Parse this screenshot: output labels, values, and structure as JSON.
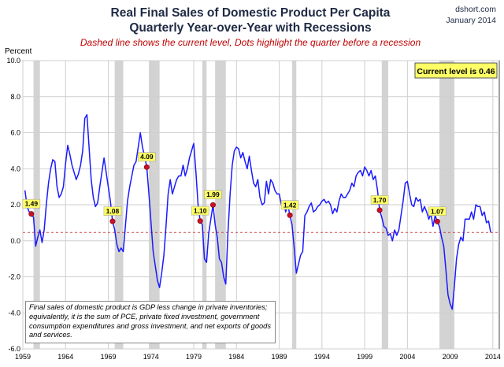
{
  "header": {
    "title_line1": "Real Final Sales of Domestic Product Per Capita",
    "title_line2": "Quarterly Year-over-Year with Recessions",
    "subtitle": "Dashed line shows the current level, Dots highlight the quarter before a recession",
    "source": "dshort.com",
    "date": "January 2014"
  },
  "current_level_label": "Current level is 0.46",
  "footnote": "Final sales of domestic product is GDP less change in private inventories; equivalently, it is the sum of PCE, private fixed investment, government consumption expenditures and gross investment, and net exports of goods and services.",
  "colors": {
    "line": "#1a1aff",
    "dots": "#c8102e",
    "dashed": "#d04040",
    "recession": "#d3d3d3",
    "label_box": "#ffff66"
  },
  "chart_data": {
    "type": "line",
    "title": "Real Final Sales of Domestic Product Per Capita",
    "subtitle": "Quarterly Year-over-Year with Recessions",
    "ylabel": "Percent",
    "ylim": [
      -6.0,
      10.0
    ],
    "yticks": [
      "10.0",
      "8.0",
      "6.0",
      "4.0",
      "2.0",
      "0.0",
      "-2.0",
      "-4.0",
      "-6.0"
    ],
    "xlim": [
      1959.0,
      2014.75
    ],
    "xticks": [
      "1959",
      "1964",
      "1969",
      "1974",
      "1979",
      "1984",
      "1989",
      "1994",
      "1999",
      "2004",
      "2009",
      "2014"
    ],
    "grid": true,
    "current_level": 0.46,
    "recessions": [
      [
        1960.25,
        1961.0
      ],
      [
        1969.75,
        1970.75
      ],
      [
        1973.75,
        1975.0
      ],
      [
        1980.0,
        1980.5
      ],
      [
        1981.5,
        1982.75
      ],
      [
        1990.5,
        1991.0
      ],
      [
        2001.0,
        2001.75
      ],
      [
        2007.75,
        2009.5
      ]
    ],
    "pre_recession_points": [
      {
        "x": 1960.0,
        "y": 1.49,
        "label": "1.49"
      },
      {
        "x": 1969.5,
        "y": 1.08,
        "label": "1.08"
      },
      {
        "x": 1973.5,
        "y": 4.09,
        "label": "4.09"
      },
      {
        "x": 1979.75,
        "y": 1.1,
        "label": "1.10"
      },
      {
        "x": 1981.25,
        "y": 1.99,
        "label": "1.99"
      },
      {
        "x": 1990.25,
        "y": 1.42,
        "label": "1.42"
      },
      {
        "x": 2000.75,
        "y": 1.7,
        "label": "1.70"
      },
      {
        "x": 2007.5,
        "y": 1.07,
        "label": "1.07"
      }
    ],
    "series": [
      {
        "points": [
          [
            1959.25,
            2.8
          ],
          [
            1959.5,
            1.9
          ],
          [
            1959.75,
            1.6
          ],
          [
            1960.0,
            1.49
          ],
          [
            1960.25,
            1.3
          ],
          [
            1960.5,
            -0.3
          ],
          [
            1960.75,
            0.2
          ],
          [
            1961.0,
            0.6
          ],
          [
            1961.25,
            -0.1
          ],
          [
            1961.5,
            0.6
          ],
          [
            1961.75,
            2.0
          ],
          [
            1962.0,
            3.2
          ],
          [
            1962.25,
            4.0
          ],
          [
            1962.5,
            4.5
          ],
          [
            1962.75,
            4.4
          ],
          [
            1963.0,
            3.0
          ],
          [
            1963.25,
            2.4
          ],
          [
            1963.5,
            2.6
          ],
          [
            1963.75,
            3.0
          ],
          [
            1964.0,
            4.3
          ],
          [
            1964.25,
            5.3
          ],
          [
            1964.5,
            4.8
          ],
          [
            1964.75,
            4.2
          ],
          [
            1965.0,
            3.8
          ],
          [
            1965.25,
            3.4
          ],
          [
            1965.5,
            3.7
          ],
          [
            1965.75,
            4.2
          ],
          [
            1966.0,
            5.0
          ],
          [
            1966.25,
            6.8
          ],
          [
            1966.5,
            7.0
          ],
          [
            1966.75,
            5.2
          ],
          [
            1967.0,
            3.4
          ],
          [
            1967.25,
            2.4
          ],
          [
            1967.5,
            1.9
          ],
          [
            1967.75,
            2.1
          ],
          [
            1968.0,
            3.0
          ],
          [
            1968.25,
            3.8
          ],
          [
            1968.5,
            4.6
          ],
          [
            1968.75,
            3.8
          ],
          [
            1969.0,
            3.0
          ],
          [
            1969.25,
            2.2
          ],
          [
            1969.5,
            1.08
          ],
          [
            1969.75,
            0.6
          ],
          [
            1970.0,
            -0.2
          ],
          [
            1970.25,
            -0.6
          ],
          [
            1970.5,
            -0.4
          ],
          [
            1970.75,
            -0.6
          ],
          [
            1971.0,
            0.8
          ],
          [
            1971.25,
            2.2
          ],
          [
            1971.5,
            3.0
          ],
          [
            1971.75,
            3.6
          ],
          [
            1972.0,
            4.2
          ],
          [
            1972.25,
            4.4
          ],
          [
            1972.5,
            5.2
          ],
          [
            1972.75,
            6.0
          ],
          [
            1973.0,
            5.2
          ],
          [
            1973.25,
            4.7
          ],
          [
            1973.5,
            4.09
          ],
          [
            1973.75,
            2.6
          ],
          [
            1974.0,
            1.0
          ],
          [
            1974.25,
            -0.6
          ],
          [
            1974.5,
            -1.4
          ],
          [
            1974.75,
            -2.2
          ],
          [
            1975.0,
            -2.6
          ],
          [
            1975.25,
            -1.8
          ],
          [
            1975.5,
            -0.8
          ],
          [
            1975.75,
            0.8
          ],
          [
            1976.0,
            2.6
          ],
          [
            1976.25,
            3.4
          ],
          [
            1976.5,
            2.6
          ],
          [
            1976.75,
            3.0
          ],
          [
            1977.0,
            3.4
          ],
          [
            1977.25,
            3.6
          ],
          [
            1977.5,
            3.6
          ],
          [
            1977.75,
            4.2
          ],
          [
            1978.0,
            3.6
          ],
          [
            1978.25,
            4.0
          ],
          [
            1978.5,
            4.6
          ],
          [
            1978.75,
            5.0
          ],
          [
            1979.0,
            5.4
          ],
          [
            1979.25,
            3.8
          ],
          [
            1979.5,
            2.0
          ],
          [
            1979.75,
            1.1
          ],
          [
            1980.0,
            0.9
          ],
          [
            1980.25,
            -1.0
          ],
          [
            1980.5,
            -1.2
          ],
          [
            1980.75,
            0.4
          ],
          [
            1981.0,
            1.2
          ],
          [
            1981.25,
            1.99
          ],
          [
            1981.5,
            0.9
          ],
          [
            1981.75,
            0.2
          ],
          [
            1982.0,
            -1.0
          ],
          [
            1982.25,
            -1.2
          ],
          [
            1982.5,
            -2.0
          ],
          [
            1982.75,
            -2.4
          ],
          [
            1983.0,
            0.4
          ],
          [
            1983.25,
            2.6
          ],
          [
            1983.5,
            4.2
          ],
          [
            1983.75,
            5.0
          ],
          [
            1984.0,
            5.2
          ],
          [
            1984.25,
            5.1
          ],
          [
            1984.5,
            4.6
          ],
          [
            1984.75,
            4.9
          ],
          [
            1985.0,
            4.4
          ],
          [
            1985.25,
            4.0
          ],
          [
            1985.5,
            4.7
          ],
          [
            1985.75,
            3.9
          ],
          [
            1986.0,
            3.2
          ],
          [
            1986.25,
            3.0
          ],
          [
            1986.5,
            3.4
          ],
          [
            1986.75,
            2.4
          ],
          [
            1987.0,
            2.0
          ],
          [
            1987.25,
            2.1
          ],
          [
            1987.5,
            3.3
          ],
          [
            1987.75,
            2.6
          ],
          [
            1988.0,
            3.4
          ],
          [
            1988.25,
            3.2
          ],
          [
            1988.5,
            2.8
          ],
          [
            1988.75,
            2.6
          ],
          [
            1989.0,
            2.6
          ],
          [
            1989.25,
            2.0
          ],
          [
            1989.5,
            2.2
          ],
          [
            1989.75,
            1.6
          ],
          [
            1990.0,
            2.0
          ],
          [
            1990.25,
            1.42
          ],
          [
            1990.5,
            0.9
          ],
          [
            1990.75,
            -0.4
          ],
          [
            1991.0,
            -1.8
          ],
          [
            1991.25,
            -1.3
          ],
          [
            1991.5,
            -0.8
          ],
          [
            1991.75,
            -0.6
          ],
          [
            1992.0,
            1.4
          ],
          [
            1992.25,
            1.6
          ],
          [
            1992.5,
            1.9
          ],
          [
            1992.75,
            2.1
          ],
          [
            1993.0,
            1.6
          ],
          [
            1993.25,
            1.7
          ],
          [
            1993.5,
            1.9
          ],
          [
            1993.75,
            2.0
          ],
          [
            1994.0,
            2.2
          ],
          [
            1994.25,
            2.3
          ],
          [
            1994.5,
            2.1
          ],
          [
            1994.75,
            2.2
          ],
          [
            1995.0,
            2.0
          ],
          [
            1995.25,
            1.5
          ],
          [
            1995.5,
            1.8
          ],
          [
            1995.75,
            1.6
          ],
          [
            1996.0,
            2.2
          ],
          [
            1996.25,
            2.6
          ],
          [
            1996.5,
            2.4
          ],
          [
            1996.75,
            2.4
          ],
          [
            1997.0,
            2.6
          ],
          [
            1997.25,
            2.8
          ],
          [
            1997.5,
            3.2
          ],
          [
            1997.75,
            3.0
          ],
          [
            1998.0,
            3.6
          ],
          [
            1998.25,
            3.8
          ],
          [
            1998.5,
            3.9
          ],
          [
            1998.75,
            3.6
          ],
          [
            1999.0,
            4.1
          ],
          [
            1999.25,
            3.9
          ],
          [
            1999.5,
            3.6
          ],
          [
            1999.75,
            3.9
          ],
          [
            2000.0,
            3.4
          ],
          [
            2000.25,
            3.6
          ],
          [
            2000.5,
            2.8
          ],
          [
            2000.75,
            1.7
          ],
          [
            2001.0,
            1.3
          ],
          [
            2001.25,
            0.8
          ],
          [
            2001.5,
            0.7
          ],
          [
            2001.75,
            0.3
          ],
          [
            2002.0,
            0.4
          ],
          [
            2002.25,
            0.0
          ],
          [
            2002.5,
            0.6
          ],
          [
            2002.75,
            0.3
          ],
          [
            2003.0,
            0.6
          ],
          [
            2003.25,
            1.4
          ],
          [
            2003.5,
            2.2
          ],
          [
            2003.75,
            3.2
          ],
          [
            2004.0,
            3.3
          ],
          [
            2004.25,
            2.6
          ],
          [
            2004.5,
            2.0
          ],
          [
            2004.75,
            1.9
          ],
          [
            2005.0,
            2.4
          ],
          [
            2005.25,
            2.2
          ],
          [
            2005.5,
            2.3
          ],
          [
            2005.75,
            1.6
          ],
          [
            2006.0,
            1.9
          ],
          [
            2006.25,
            1.6
          ],
          [
            2006.5,
            1.2
          ],
          [
            2006.75,
            1.5
          ],
          [
            2007.0,
            0.8
          ],
          [
            2007.25,
            1.4
          ],
          [
            2007.5,
            1.07
          ],
          [
            2007.75,
            0.8
          ],
          [
            2008.0,
            0.2
          ],
          [
            2008.25,
            -0.3
          ],
          [
            2008.5,
            -1.6
          ],
          [
            2008.75,
            -3.0
          ],
          [
            2009.0,
            -3.5
          ],
          [
            2009.25,
            -3.8
          ],
          [
            2009.5,
            -2.5
          ],
          [
            2009.75,
            -1.0
          ],
          [
            2010.0,
            -0.2
          ],
          [
            2010.25,
            0.2
          ],
          [
            2010.5,
            0.0
          ],
          [
            2010.75,
            1.2
          ],
          [
            2011.0,
            1.2
          ],
          [
            2011.25,
            1.2
          ],
          [
            2011.5,
            1.6
          ],
          [
            2011.75,
            1.2
          ],
          [
            2012.0,
            2.0
          ],
          [
            2012.25,
            1.9
          ],
          [
            2012.5,
            1.9
          ],
          [
            2012.75,
            1.4
          ],
          [
            2013.0,
            1.6
          ],
          [
            2013.25,
            1.0
          ],
          [
            2013.5,
            1.1
          ],
          [
            2013.75,
            0.46
          ]
        ]
      }
    ]
  }
}
